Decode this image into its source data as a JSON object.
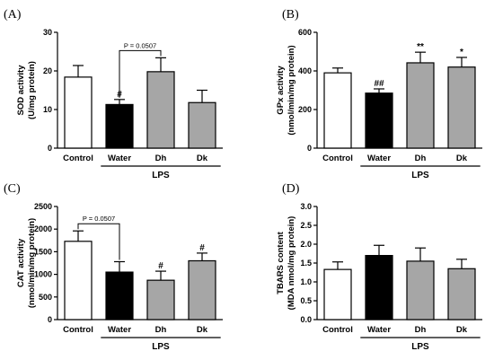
{
  "chart_data": [
    {
      "type": "bar",
      "panel": "(A)",
      "ylabel": [
        "SOD activity",
        "(U/mg protein)"
      ],
      "categories": [
        "Control",
        "Water",
        "Dh",
        "Dk"
      ],
      "values": [
        18.4,
        11.3,
        19.8,
        11.8
      ],
      "errors": [
        3.0,
        1.3,
        3.6,
        3.2
      ],
      "fill_colors": [
        "#ffffff",
        "#000000",
        "#a6a6a6",
        "#a6a6a6"
      ],
      "ylim": [
        0,
        30
      ],
      "yticks": [
        0,
        10,
        20,
        30
      ],
      "group_label": "LPS",
      "group_span": [
        1,
        3
      ],
      "significance": [
        "",
        "#",
        "",
        ""
      ],
      "bracket": {
        "from": 1,
        "to": 2,
        "label": "P = 0.0507"
      }
    },
    {
      "type": "bar",
      "panel": "(B)",
      "ylabel": [
        "GPx activity",
        "(nmol/min/mg protein)"
      ],
      "categories": [
        "Control",
        "Water",
        "Dh",
        "Dk"
      ],
      "values": [
        390,
        285,
        442,
        420
      ],
      "errors": [
        25,
        22,
        55,
        50
      ],
      "fill_colors": [
        "#ffffff",
        "#000000",
        "#a6a6a6",
        "#a6a6a6"
      ],
      "ylim": [
        0,
        600
      ],
      "yticks": [
        0,
        200,
        400,
        600
      ],
      "group_label": "LPS",
      "group_span": [
        1,
        3
      ],
      "significance": [
        "",
        "##",
        "**",
        "*"
      ]
    },
    {
      "type": "bar",
      "panel": "(C)",
      "ylabel": [
        "CAT activity",
        "(nmol/min/mg protein)"
      ],
      "categories": [
        "Control",
        "Water",
        "Dh",
        "Dk"
      ],
      "values": [
        1730,
        1050,
        870,
        1300
      ],
      "errors": [
        230,
        230,
        200,
        170
      ],
      "fill_colors": [
        "#ffffff",
        "#000000",
        "#a6a6a6",
        "#a6a6a6"
      ],
      "ylim": [
        0,
        2500
      ],
      "yticks": [
        0,
        500,
        1000,
        1500,
        2000,
        2500
      ],
      "group_label": "LPS",
      "group_span": [
        1,
        3
      ],
      "significance": [
        "",
        "",
        "#",
        "#"
      ],
      "bracket": {
        "from": 0,
        "to": 1,
        "label": "P = 0.0507"
      }
    },
    {
      "type": "bar",
      "panel": "(D)",
      "ylabel": [
        "TBARS content",
        "(MDA nmol/mg protein)"
      ],
      "categories": [
        "Control",
        "Water",
        "Dh",
        "Dk"
      ],
      "values": [
        1.33,
        1.7,
        1.55,
        1.35
      ],
      "errors": [
        0.2,
        0.27,
        0.35,
        0.25
      ],
      "fill_colors": [
        "#ffffff",
        "#000000",
        "#a6a6a6",
        "#a6a6a6"
      ],
      "ylim": [
        0,
        3.0
      ],
      "yticks": [
        0.0,
        0.5,
        1.0,
        1.5,
        2.0,
        2.5,
        3.0
      ],
      "ytick_labels": [
        "0.0",
        "0.5",
        "1.0",
        "1.5",
        "2.0",
        "2.5",
        "3.0"
      ],
      "group_label": "LPS",
      "group_span": [
        1,
        3
      ],
      "significance": [
        "",
        "",
        "",
        ""
      ]
    }
  ]
}
